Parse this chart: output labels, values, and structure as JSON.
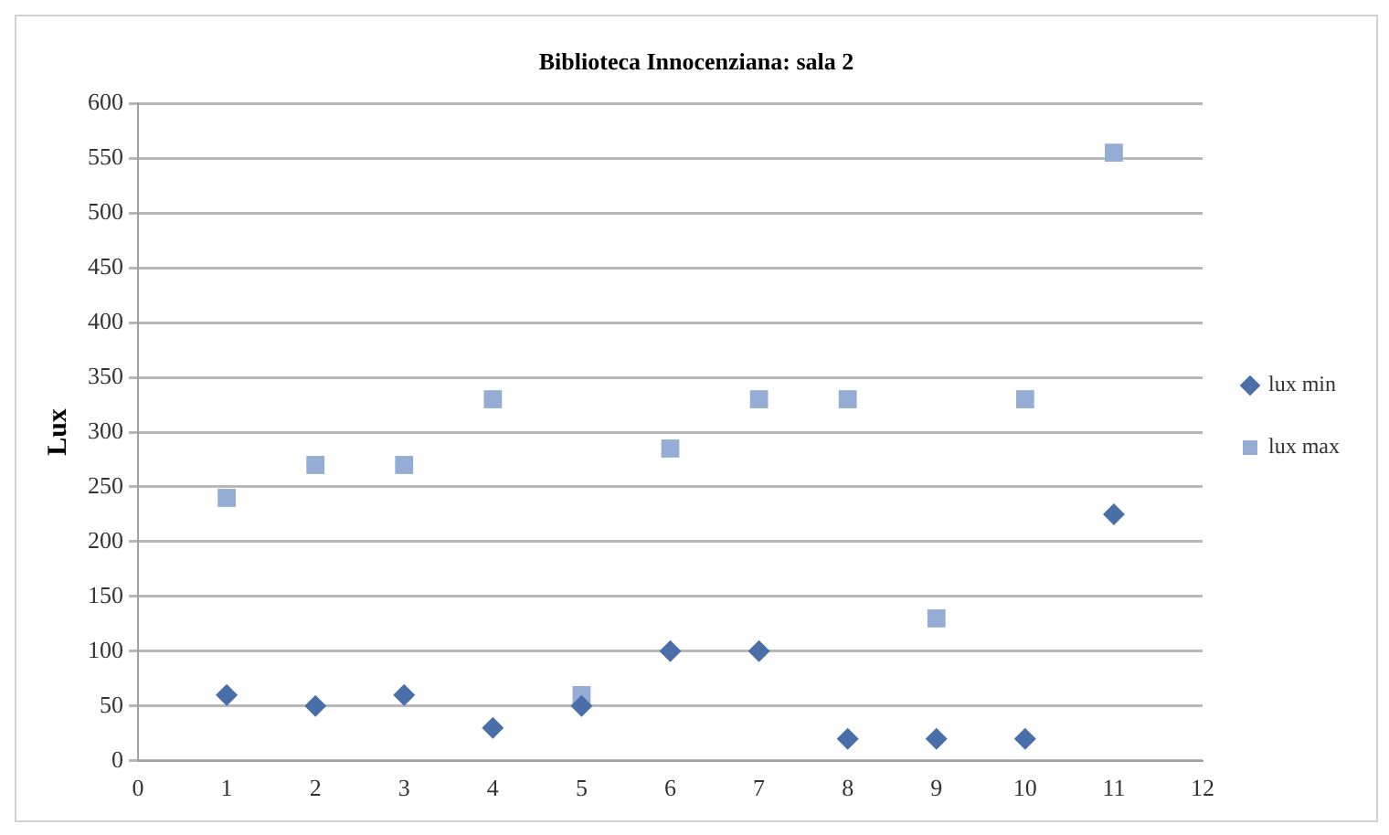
{
  "chart_data": {
    "type": "scatter",
    "title": "Biblioteca Innocenziana: sala 2",
    "ylabel": "Lux",
    "x": [
      1,
      2,
      3,
      4,
      5,
      6,
      7,
      8,
      9,
      10,
      11
    ],
    "series": [
      {
        "name": "lux min",
        "color": "#4a6fa8",
        "marker": "diamond",
        "values": [
          60,
          50,
          60,
          30,
          50,
          100,
          100,
          20,
          20,
          20,
          225
        ]
      },
      {
        "name": "lux max",
        "color": "#95add4",
        "marker": "square",
        "values": [
          240,
          270,
          270,
          330,
          60,
          285,
          330,
          330,
          130,
          330,
          555
        ]
      }
    ],
    "xlim": [
      0,
      12
    ],
    "xticks": [
      0,
      1,
      2,
      3,
      4,
      5,
      6,
      7,
      8,
      9,
      10,
      11,
      12
    ],
    "ylim": [
      0,
      600
    ],
    "yticks": [
      0,
      50,
      100,
      150,
      200,
      250,
      300,
      350,
      400,
      450,
      500,
      550,
      600
    ],
    "grid": "y",
    "legend": "right"
  }
}
